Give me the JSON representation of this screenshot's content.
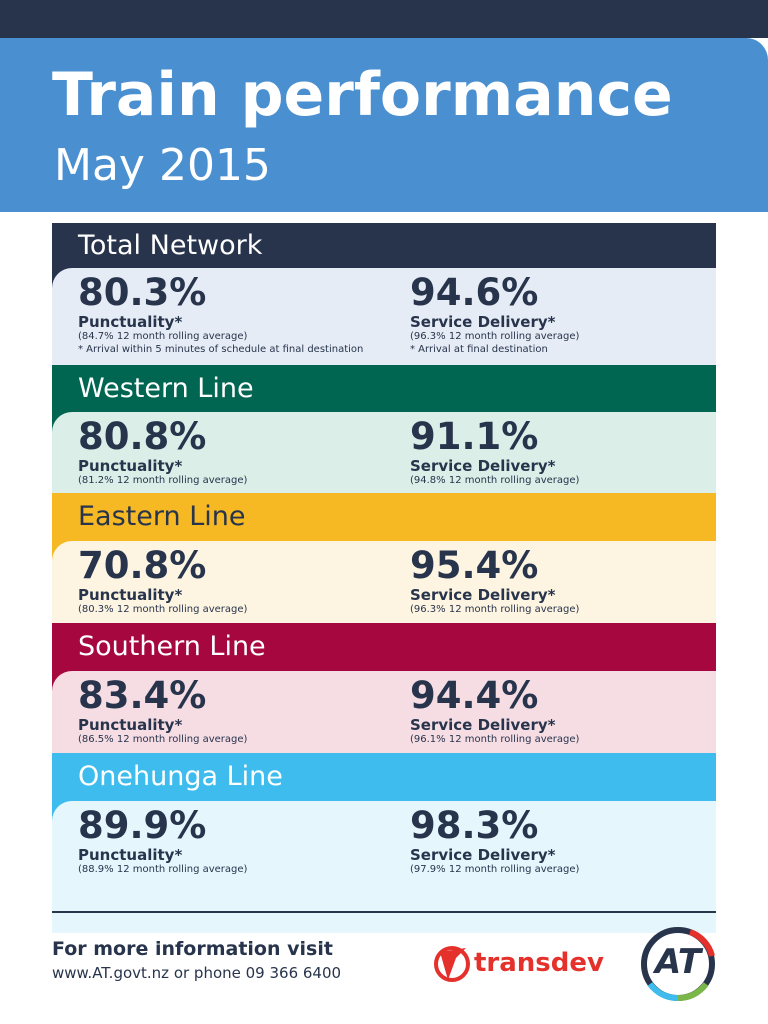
{
  "header": {
    "title": "Train performance",
    "subtitle": "May 2015"
  },
  "sections": [
    {
      "name": "Total Network",
      "header_color": "#27344c",
      "text_color": "#ffffff",
      "body_color": "#e6ecf5",
      "punctuality": {
        "value": "80.3%",
        "label": "Punctuality*",
        "average": "(84.7% 12 month rolling average)",
        "note": "* Arrival within 5 minutes of schedule at final destination"
      },
      "service_delivery": {
        "value": "94.6%",
        "label": "Service Delivery*",
        "average": "(96.3% 12 month rolling average)",
        "note": "* Arrival at final destination"
      }
    },
    {
      "name": "Western Line",
      "header_color": "#006651",
      "text_color": "#ffffff",
      "body_color": "#dbeee7",
      "punctuality": {
        "value": "80.8%",
        "label": "Punctuality*",
        "average": "(81.2% 12 month rolling average)"
      },
      "service_delivery": {
        "value": "91.1%",
        "label": "Service Delivery*",
        "average": "(94.8% 12 month rolling average)"
      }
    },
    {
      "name": "Eastern Line",
      "header_color": "#f6b923",
      "text_color": "#27344c",
      "body_color": "#fdf4e1",
      "punctuality": {
        "value": "70.8%",
        "label": "Punctuality*",
        "average": "(80.3% 12 month rolling average)"
      },
      "service_delivery": {
        "value": "95.4%",
        "label": "Service Delivery*",
        "average": "(96.3% 12 month rolling average)"
      }
    },
    {
      "name": "Southern Line",
      "header_color": "#a6073f",
      "text_color": "#ffffff",
      "body_color": "#f6dde4",
      "punctuality": {
        "value": "83.4%",
        "label": "Punctuality*",
        "average": "(86.5% 12 month rolling average)"
      },
      "service_delivery": {
        "value": "94.4%",
        "label": "Service Delivery*",
        "average": "(96.1% 12 month rolling average)"
      }
    },
    {
      "name": "Onehunga Line",
      "header_color": "#3dbced",
      "text_color": "#ffffff",
      "body_color": "#e6f6fd",
      "punctuality": {
        "value": "89.9%",
        "label": "Punctuality*",
        "average": "(88.9% 12 month rolling average)"
      },
      "service_delivery": {
        "value": "98.3%",
        "label": "Service Delivery*",
        "average": "(97.9% 12 month rolling average)"
      }
    }
  ],
  "footer": {
    "heading": "For more information visit",
    "contact": "www.AT.govt.nz or phone 09 366 6400",
    "logos": [
      "transdev",
      "AT"
    ]
  }
}
